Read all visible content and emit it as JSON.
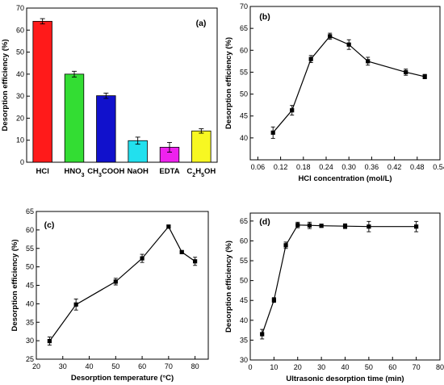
{
  "chart_data": [
    {
      "type": "bar",
      "panel_label": "(a)",
      "ylabel": "Desorption efficiency (%)",
      "xlabel": "",
      "ylim": [
        0,
        70
      ],
      "yticks": [
        0,
        10,
        20,
        30,
        40,
        50,
        60,
        70
      ],
      "categories": [
        "HCl",
        "HNO3",
        "CH3COOH",
        "NaOH",
        "EDTA",
        "C2H5OH"
      ],
      "category_labels": [
        {
          "base": "HCl"
        },
        {
          "base": "HNO",
          "sub": "3"
        },
        {
          "base": "CH",
          "sub": "3",
          "tail": "COOH"
        },
        {
          "base": "NaOH"
        },
        {
          "base": "EDTA"
        },
        {
          "base": "C",
          "sub": "2",
          "mid": "H",
          "sub2": "5",
          "tail": "OH"
        }
      ],
      "values": [
        64,
        40,
        30.2,
        9.8,
        6.8,
        14.2
      ],
      "errors": [
        1.2,
        1.3,
        1.2,
        1.6,
        2.2,
        1.0
      ],
      "colors": [
        "#ff1a1a",
        "#33dd33",
        "#1111cc",
        "#22e0ee",
        "#ee22ee",
        "#f7f722"
      ]
    },
    {
      "type": "line",
      "panel_label": "(b)",
      "xlabel": "HCl concentration (mol/L)",
      "ylabel": "Desorption efficiency (%)",
      "xlim": [
        0.04,
        0.54
      ],
      "ylim": [
        35,
        70
      ],
      "xticks": [
        "0.06",
        "0.12",
        "0.18",
        "0.24",
        "0.30",
        "0.36",
        "0.42",
        "0.48",
        "0.54"
      ],
      "yticks": [
        "40",
        "45",
        "50",
        "55",
        "60",
        "65",
        "70"
      ],
      "x": [
        0.1,
        0.15,
        0.2,
        0.25,
        0.3,
        0.35,
        0.45,
        0.5
      ],
      "y": [
        41.2,
        46.3,
        58.0,
        63.2,
        61.3,
        57.5,
        55.0,
        54.0
      ],
      "errors": [
        1.3,
        1.1,
        0.8,
        0.7,
        1.1,
        0.9,
        0.7,
        0.5
      ]
    },
    {
      "type": "line",
      "panel_label": "(c)",
      "xlabel": "Desorption temperature (°C)",
      "ylabel": "Desorption efficiency (%)",
      "xlim": [
        20,
        85
      ],
      "ylim": [
        25,
        65
      ],
      "xticks": [
        "20",
        "30",
        "40",
        "50",
        "60",
        "70",
        "80"
      ],
      "yticks": [
        "25",
        "30",
        "35",
        "40",
        "45",
        "50",
        "55",
        "60",
        "65"
      ],
      "x": [
        25,
        35,
        50,
        60,
        70,
        75,
        80
      ],
      "y": [
        29.9,
        39.8,
        46.0,
        52.3,
        60.9,
        54.0,
        51.5
      ],
      "errors": [
        1.1,
        1.5,
        0.9,
        1.1,
        0.4,
        0.3,
        1.1
      ]
    },
    {
      "type": "line",
      "panel_label": "(d)",
      "xlabel": "Ultrasonic desorption time (min)",
      "ylabel": "Desorption efficiency (%)",
      "xlim": [
        0,
        80
      ],
      "ylim": [
        30,
        67
      ],
      "xticks": [
        "0",
        "10",
        "20",
        "30",
        "40",
        "50",
        "60",
        "70",
        "80"
      ],
      "yticks": [
        "30",
        "35",
        "40",
        "45",
        "50",
        "55",
        "60",
        "65"
      ],
      "x": [
        5,
        10,
        15,
        20,
        25,
        30,
        40,
        50,
        70
      ],
      "y": [
        36.5,
        45.1,
        58.9,
        64.0,
        63.9,
        63.8,
        63.7,
        63.6,
        63.6
      ],
      "errors": [
        1.2,
        0.6,
        0.8,
        0.7,
        0.8,
        0.4,
        0.6,
        1.3,
        1.3
      ]
    }
  ]
}
